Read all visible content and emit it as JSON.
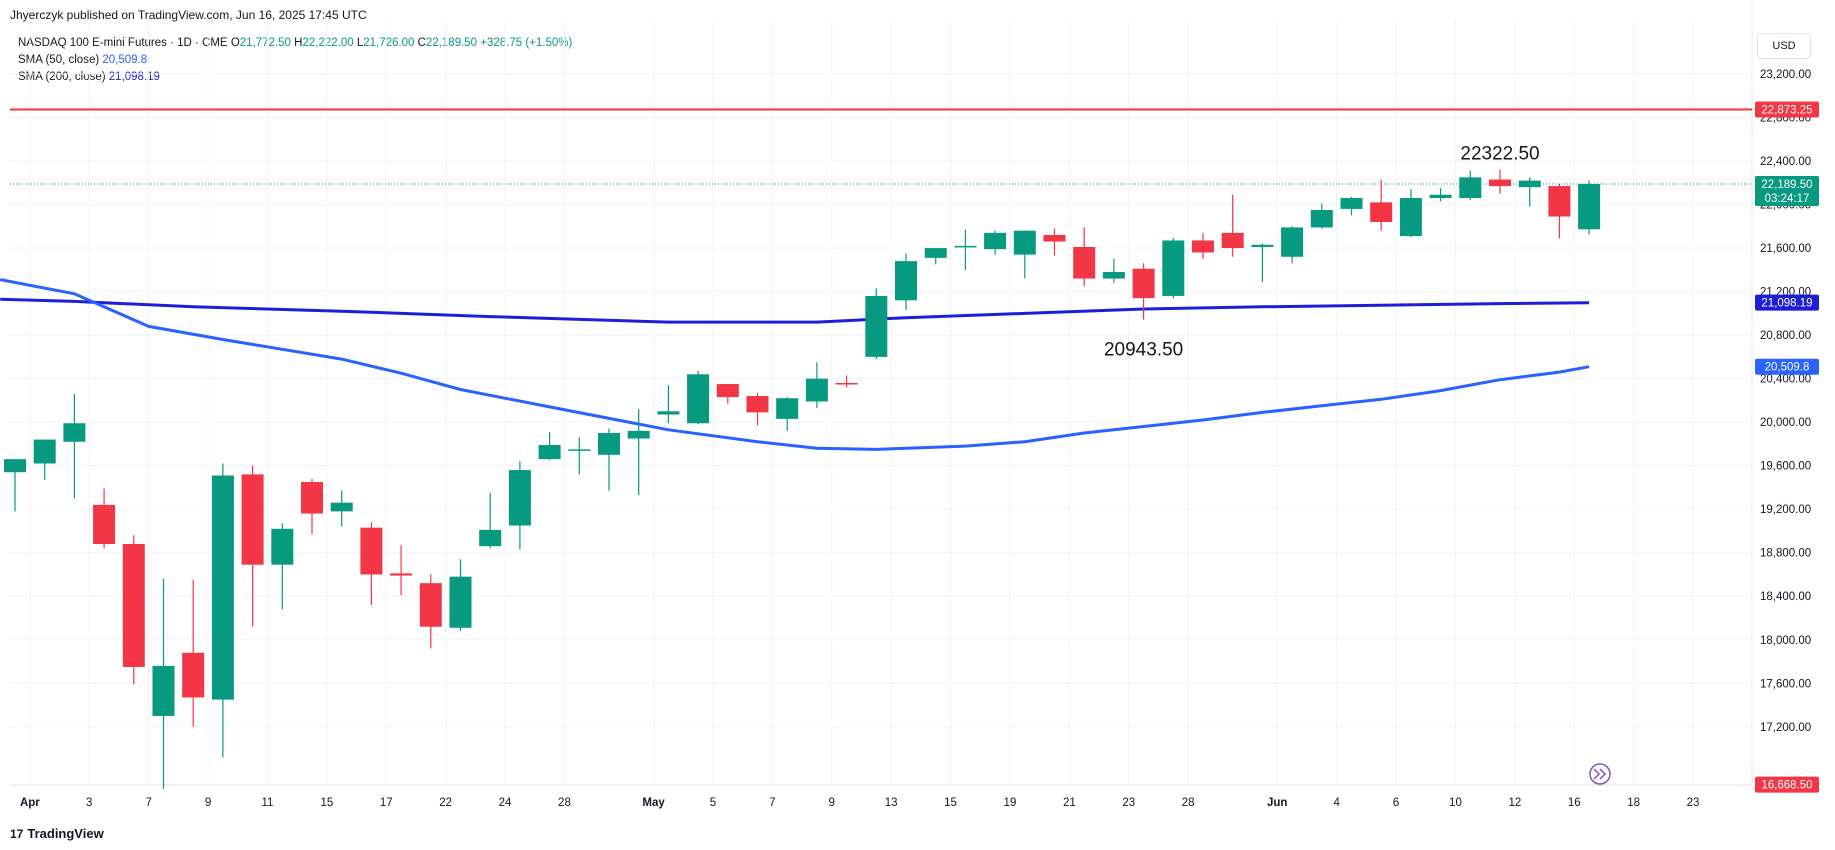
{
  "header": {
    "publisher": "Jhyerczyk published on TradingView.com, Jun 16, 2025 17:45 UTC",
    "symbol": "NASDAQ 100 E-mini Futures · 1D · CME",
    "o_label": "O",
    "o_value": "21,772.50",
    "h_label": "H",
    "h_value": "22,222.00",
    "l_label": "L",
    "l_value": "21,726.00",
    "c_label": "C",
    "c_value": "22,189.50",
    "change": "+328.75 (+1.50%)",
    "sma50_label": "SMA (50, close)",
    "sma50_value": "20,509.8",
    "sma200_label": "SMA (200, close)",
    "sma200_value": "21,098.19"
  },
  "currency": "USD",
  "footer": {
    "logo": "17",
    "brand": "TradingView"
  },
  "colors": {
    "up": "#089981",
    "down": "#f23645",
    "sma50": "#2962ff",
    "sma200": "#1d1fd6",
    "resistance": "#f23645",
    "grid": "#f0f3fa",
    "axis_text": "#131722"
  },
  "chart_data": {
    "type": "candlestick",
    "ylim": [
      16400,
      23500
    ],
    "y_ticks": [
      "23,200.00",
      "22,800.00",
      "22,400.00",
      "22,000.00",
      "21,600.00",
      "21,200.00",
      "20,800.00",
      "20,400.00",
      "20,000.00",
      "19,600.00",
      "19,200.00",
      "18,800.00",
      "18,400.00",
      "18,000.00",
      "17,600.00",
      "17,200.00"
    ],
    "y_tick_values": [
      23200,
      22800,
      22400,
      22000,
      21600,
      21200,
      20800,
      20400,
      20000,
      19600,
      19200,
      18800,
      18400,
      18000,
      17600,
      17200
    ],
    "x_ticks": [
      {
        "label": "Apr",
        "i": 0.5
      },
      {
        "label": "3",
        "i": 2.5
      },
      {
        "label": "7",
        "i": 4.5
      },
      {
        "label": "9",
        "i": 6.5
      },
      {
        "label": "11",
        "i": 8.5
      },
      {
        "label": "15",
        "i": 10.5
      },
      {
        "label": "17",
        "i": 12.5
      },
      {
        "label": "22",
        "i": 14.5
      },
      {
        "label": "24",
        "i": 16.5
      },
      {
        "label": "28",
        "i": 18.5
      },
      {
        "label": "May",
        "i": 21.5
      },
      {
        "label": "5",
        "i": 23.5
      },
      {
        "label": "7",
        "i": 25.5
      },
      {
        "label": "9",
        "i": 27.5
      },
      {
        "label": "13",
        "i": 29.5
      },
      {
        "label": "15",
        "i": 31.5
      },
      {
        "label": "19",
        "i": 33.5
      },
      {
        "label": "21",
        "i": 35.5
      },
      {
        "label": "23",
        "i": 37.5
      },
      {
        "label": "28",
        "i": 39.5
      },
      {
        "label": "Jun",
        "i": 42.5
      },
      {
        "label": "4",
        "i": 44.5
      },
      {
        "label": "6",
        "i": 46.5
      },
      {
        "label": "10",
        "i": 48.5
      },
      {
        "label": "12",
        "i": 50.5
      },
      {
        "label": "16",
        "i": 52.5
      },
      {
        "label": "18",
        "i": 54.5
      },
      {
        "label": "23",
        "i": 56.5
      }
    ],
    "ohlc": [
      [
        19540,
        19660,
        19180,
        19660
      ],
      [
        19620,
        19840,
        19470,
        19840
      ],
      [
        19820,
        20260,
        19300,
        19990
      ],
      [
        19240,
        19390,
        18840,
        18880
      ],
      [
        18880,
        18960,
        17590,
        17750
      ],
      [
        17300,
        18560,
        16630,
        17760
      ],
      [
        17880,
        18550,
        17200,
        17470
      ],
      [
        17450,
        19620,
        16920,
        19510
      ],
      [
        19520,
        19600,
        18120,
        18690
      ],
      [
        18690,
        19070,
        18280,
        19020
      ],
      [
        19450,
        19480,
        18970,
        19160
      ],
      [
        19180,
        19370,
        19040,
        19260
      ],
      [
        19030,
        19080,
        18320,
        18600
      ],
      [
        18610,
        18870,
        18410,
        18590
      ],
      [
        18520,
        18600,
        17920,
        18120
      ],
      [
        18110,
        18740,
        18080,
        18580
      ],
      [
        18860,
        19350,
        18840,
        19010
      ],
      [
        19050,
        19640,
        18830,
        19560
      ],
      [
        19660,
        19910,
        19650,
        19790
      ],
      [
        19750,
        19860,
        19520,
        19750
      ],
      [
        19700,
        19940,
        19370,
        19900
      ],
      [
        19850,
        20120,
        19330,
        19920
      ],
      [
        20070,
        20340,
        19990,
        20100
      ],
      [
        19990,
        20470,
        19980,
        20440
      ],
      [
        20350,
        20350,
        20170,
        20230
      ],
      [
        20240,
        20270,
        19970,
        20090
      ],
      [
        20030,
        20230,
        19920,
        20220
      ],
      [
        20190,
        20550,
        20130,
        20400
      ],
      [
        20360,
        20430,
        20320,
        20350
      ],
      [
        20600,
        21230,
        20580,
        21160
      ],
      [
        21120,
        21550,
        21030,
        21480
      ],
      [
        21510,
        21590,
        21450,
        21600
      ],
      [
        21620,
        21770,
        21400,
        21620
      ],
      [
        21590,
        21760,
        21540,
        21740
      ],
      [
        21540,
        21760,
        21320,
        21760
      ],
      [
        21720,
        21780,
        21530,
        21660
      ],
      [
        21610,
        21790,
        21250,
        21320
      ],
      [
        21320,
        21500,
        21280,
        21380
      ],
      [
        21410,
        21460,
        20943.5,
        21140
      ],
      [
        21160,
        21690,
        21140,
        21670
      ],
      [
        21670,
        21740,
        21500,
        21560
      ],
      [
        21740,
        22090,
        21520,
        21600
      ],
      [
        21610,
        21640,
        21290,
        21630
      ],
      [
        21520,
        21800,
        21460,
        21790
      ],
      [
        21790,
        22010,
        21780,
        21950
      ],
      [
        21960,
        22070,
        21900,
        22060
      ],
      [
        22020,
        22230,
        21760,
        21840
      ],
      [
        21710,
        22140,
        21700,
        22060
      ],
      [
        22060,
        22150,
        22030,
        22090
      ],
      [
        22060,
        22310,
        22040,
        22250
      ],
      [
        22230,
        22322.5,
        22100,
        22170
      ],
      [
        22160,
        22250,
        21980,
        22220
      ],
      [
        22170,
        22190,
        21690,
        21890
      ],
      [
        21772.5,
        22222,
        21726,
        22189.5
      ]
    ],
    "sma50": [
      {
        "i": -0.5,
        "v": 21310
      },
      {
        "i": 2,
        "v": 21180
      },
      {
        "i": 4.5,
        "v": 20880
      },
      {
        "i": 7,
        "v": 20760
      },
      {
        "i": 11,
        "v": 20580
      },
      {
        "i": 13,
        "v": 20450
      },
      {
        "i": 15,
        "v": 20300
      },
      {
        "i": 18,
        "v": 20140
      },
      {
        "i": 22,
        "v": 19930
      },
      {
        "i": 25,
        "v": 19820
      },
      {
        "i": 27,
        "v": 19760
      },
      {
        "i": 29,
        "v": 19750
      },
      {
        "i": 32,
        "v": 19780
      },
      {
        "i": 34,
        "v": 19820
      },
      {
        "i": 36,
        "v": 19900
      },
      {
        "i": 38,
        "v": 19960
      },
      {
        "i": 40,
        "v": 20020
      },
      {
        "i": 42,
        "v": 20090
      },
      {
        "i": 44,
        "v": 20150
      },
      {
        "i": 46,
        "v": 20210
      },
      {
        "i": 48,
        "v": 20290
      },
      {
        "i": 50,
        "v": 20390
      },
      {
        "i": 52,
        "v": 20460
      },
      {
        "i": 53,
        "v": 20509.8
      }
    ],
    "sma200": [
      {
        "i": -0.5,
        "v": 21130
      },
      {
        "i": 2,
        "v": 21110
      },
      {
        "i": 6,
        "v": 21060
      },
      {
        "i": 11,
        "v": 21020
      },
      {
        "i": 16,
        "v": 20970
      },
      {
        "i": 22,
        "v": 20920
      },
      {
        "i": 27,
        "v": 20920
      },
      {
        "i": 30,
        "v": 20960
      },
      {
        "i": 34,
        "v": 21000
      },
      {
        "i": 38,
        "v": 21040
      },
      {
        "i": 42,
        "v": 21060
      },
      {
        "i": 46,
        "v": 21075
      },
      {
        "i": 50,
        "v": 21090
      },
      {
        "i": 53,
        "v": 21098.19
      }
    ],
    "resistance": 22873.25,
    "last_price": 22189.5,
    "annotations": [
      {
        "label": "22322.50",
        "i": 50,
        "value": 22322.5,
        "position": "above"
      },
      {
        "label": "20943.50",
        "i": 38,
        "value": 20943.5,
        "position": "below"
      }
    ],
    "price_labels": [
      {
        "label": "22,873.25",
        "value": 22873.25,
        "color": "#f23645"
      },
      {
        "label": "22,189.50",
        "value": 22189.5,
        "color": "#089981",
        "sub": "03:24:17"
      },
      {
        "label": "21,098.19",
        "value": 21098.19,
        "color": "#1d1fd6"
      },
      {
        "label": "20,509.8",
        "value": 20509.8,
        "color": "#2962ff"
      },
      {
        "label": "16,668.50",
        "value": 16668.5,
        "color": "#f23645"
      }
    ]
  }
}
